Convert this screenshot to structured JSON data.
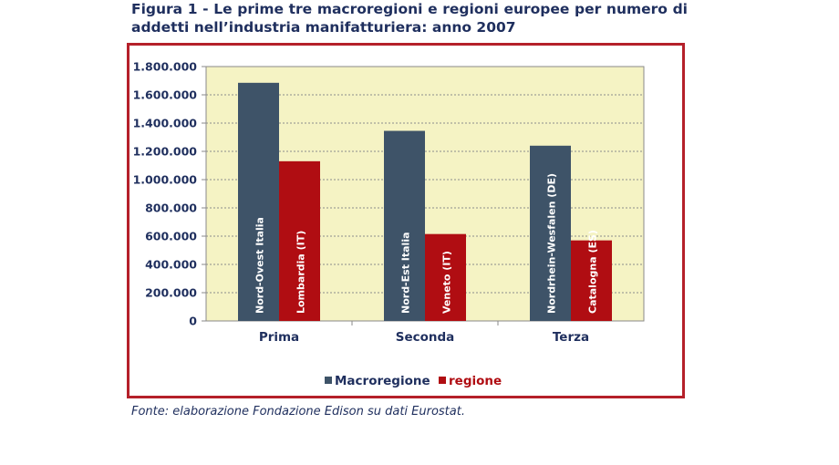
{
  "figure": {
    "title": "Figura 1 - Le prime tre macroregioni e regioni europee per numero di addetti nell’industria manifatturiera: anno 2007",
    "source": "Fonte: elaborazione Fondazione Edison su dati Eurostat."
  },
  "colors": {
    "macroregione": "#3e5368",
    "regione": "#b00d12",
    "plot_bg": "#f5f3c4",
    "frame": "#b5202a",
    "text": "#1f2f5e"
  },
  "chart_data": {
    "type": "bar",
    "categories": [
      "Prima",
      "Seconda",
      "Terza"
    ],
    "series": [
      {
        "name": "Macroregione",
        "values": [
          1685000,
          1345000,
          1240000
        ],
        "labels": [
          "Nord-Ovest Italia",
          "Nord-Est Italia",
          "Nordrhein-Wesfalen (DE)"
        ]
      },
      {
        "name": "regione",
        "values": [
          1130000,
          615000,
          570000
        ],
        "labels": [
          "Lombardia (IT)",
          "Veneto (IT)",
          "Catalogna (ES)"
        ]
      }
    ],
    "ylim": [
      0,
      1800000
    ],
    "yticks": [
      0,
      200000,
      400000,
      600000,
      800000,
      1000000,
      1200000,
      1400000,
      1600000,
      1800000
    ],
    "ytick_labels": [
      "0",
      "200.000",
      "400.000",
      "600.000",
      "800.000",
      "1.000.000",
      "1.200.000",
      "1.400.000",
      "1.600.000",
      "1.800.000"
    ],
    "grid": true,
    "legend_position": "bottom"
  }
}
